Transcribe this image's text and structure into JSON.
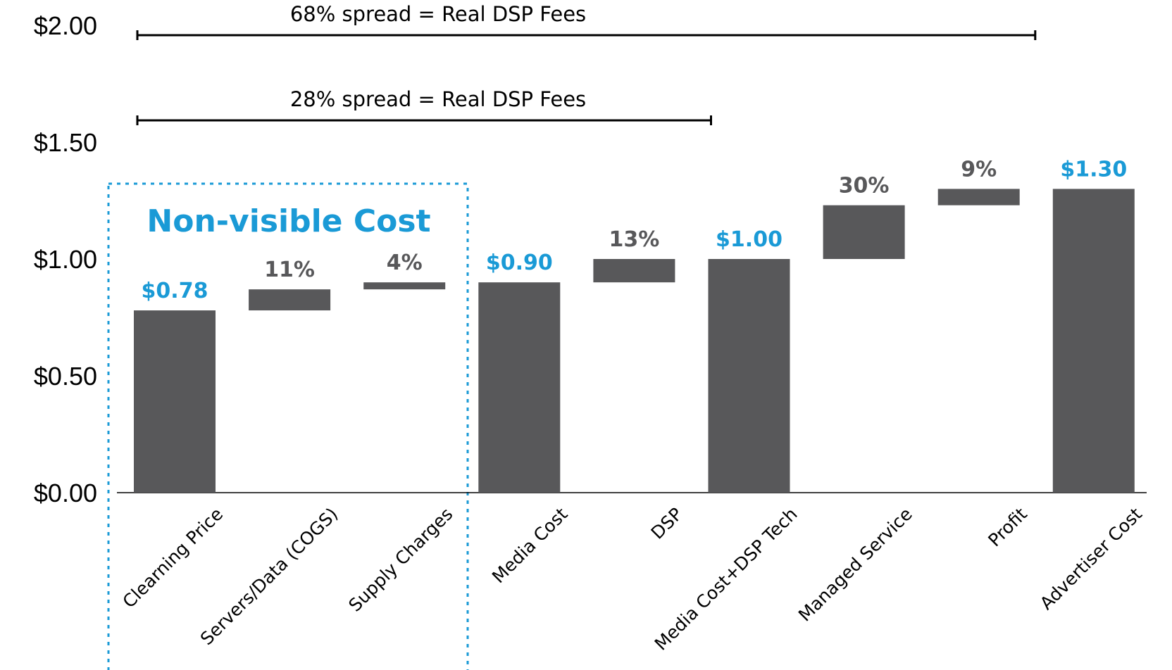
{
  "colors": {
    "bar": "#58585a",
    "accent": "#1a9ad6",
    "pct_label": "#58585a",
    "axis": "#000000"
  },
  "annotations": {
    "spread_top": "68% spread = Real DSP Fees",
    "spread_bottom": "28% spread = Real DSP Fees",
    "region_label": "Non-visible Cost"
  },
  "chart_data": {
    "type": "bar",
    "subtype": "waterfall",
    "ylim": [
      0,
      2.0
    ],
    "yticks": [
      {
        "value": 0,
        "label": "$0.00"
      },
      {
        "value": 0.5,
        "label": "$0.50"
      },
      {
        "value": 1.0,
        "label": "$1.00"
      },
      {
        "value": 1.5,
        "label": "$1.50"
      },
      {
        "value": 2.0,
        "label": "$2.00"
      }
    ],
    "categories": [
      "Clearning Price",
      "Servers/Data (COGS)",
      "Supply Charges",
      "Media Cost",
      "DSP",
      "Media Cost+DSP Tech",
      "Managed Service",
      "Profit",
      "Advertiser Cost"
    ],
    "bars": [
      {
        "kind": "total",
        "start": 0,
        "end": 0.78,
        "label": "$0.78",
        "label_color": "accent"
      },
      {
        "kind": "step",
        "start": 0.78,
        "end": 0.87,
        "label": "11%",
        "label_color": "pct_label"
      },
      {
        "kind": "step",
        "start": 0.87,
        "end": 0.9,
        "label": "4%",
        "label_color": "pct_label"
      },
      {
        "kind": "total",
        "start": 0,
        "end": 0.9,
        "label": "$0.90",
        "label_color": "accent"
      },
      {
        "kind": "step",
        "start": 0.9,
        "end": 1.0,
        "label": "13%",
        "label_color": "pct_label"
      },
      {
        "kind": "total",
        "start": 0,
        "end": 1.0,
        "label": "$1.00",
        "label_color": "accent"
      },
      {
        "kind": "step",
        "start": 1.0,
        "end": 1.23,
        "label": "30%",
        "label_color": "pct_label"
      },
      {
        "kind": "step",
        "start": 1.23,
        "end": 1.3,
        "label": "9%",
        "label_color": "pct_label"
      },
      {
        "kind": "total",
        "start": 0,
        "end": 1.3,
        "label": "$1.30",
        "label_color": "accent"
      }
    ],
    "spread_brackets": [
      {
        "label": "68% spread = Real DSP Fees",
        "from_category": 0,
        "to_category": 8
      },
      {
        "label": "28% spread = Real DSP Fees",
        "from_category": 0,
        "to_category": 5
      }
    ],
    "highlight_region": {
      "label": "Non-visible Cost",
      "categories": [
        0,
        1,
        2
      ]
    }
  }
}
